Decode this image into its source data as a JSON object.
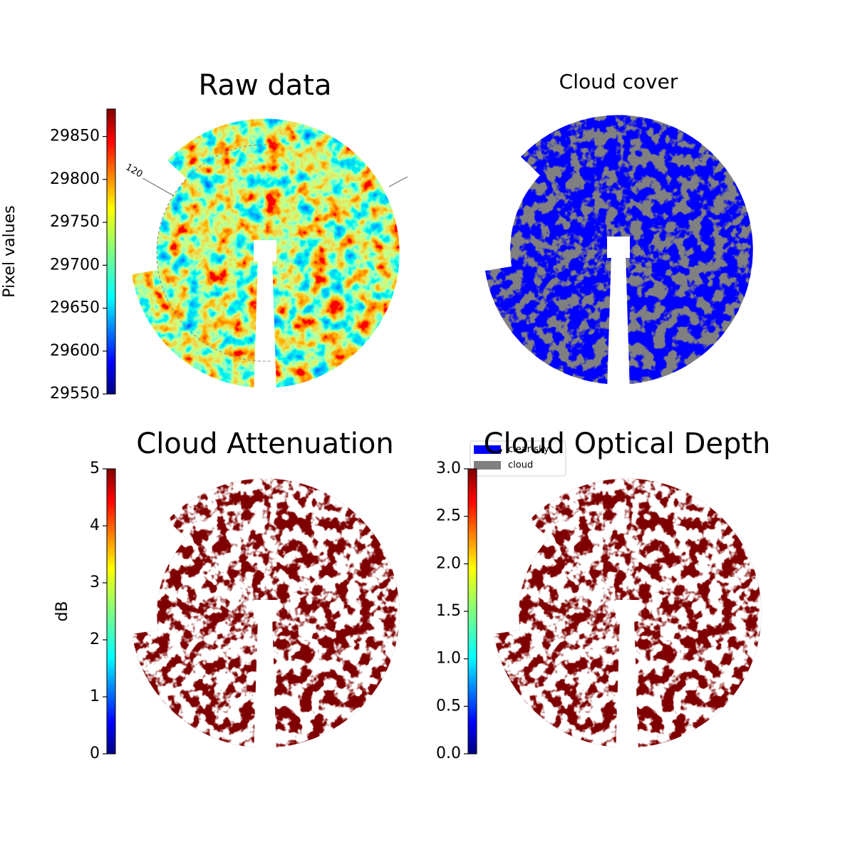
{
  "chart_data": [
    {
      "type": "image",
      "title": "Raw data",
      "colorbar_label": "Pixel values",
      "colormap": "jet",
      "clim": [
        29550,
        29882
      ],
      "cticks": [
        29550,
        29600,
        29650,
        29700,
        29750,
        29800,
        29850
      ],
      "annotation": "120"
    },
    {
      "type": "image",
      "title": "Cloud cover",
      "legend": [
        {
          "name": "clear sky",
          "color": "#0000ff"
        },
        {
          "name": "cloud",
          "color": "#808080"
        }
      ]
    },
    {
      "type": "image",
      "title": "Cloud Attenuation",
      "colorbar_label": "dB",
      "colormap": "jet",
      "clim": [
        0,
        5
      ],
      "cticks": [
        0,
        1,
        2,
        3,
        4,
        5
      ]
    },
    {
      "type": "image",
      "title": "Cloud Optical Depth",
      "colormap": "jet",
      "clim": [
        0,
        3
      ],
      "cticks": [
        {
          "value": 0,
          "label": "0.0"
        },
        {
          "value": 0.5,
          "label": "0.5"
        },
        {
          "value": 1,
          "label": "1.0"
        },
        {
          "value": 1.5,
          "label": "1.5"
        },
        {
          "value": 2,
          "label": "2.0"
        },
        {
          "value": 2.5,
          "label": "2.5"
        },
        {
          "value": 3,
          "label": "3.0"
        }
      ]
    }
  ]
}
